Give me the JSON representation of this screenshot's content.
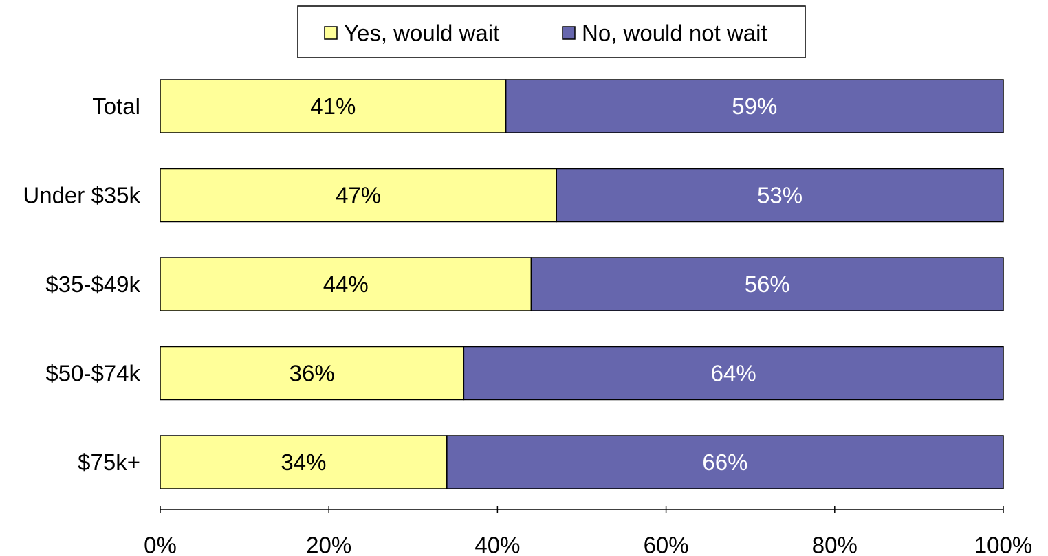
{
  "chart_data": {
    "type": "bar",
    "orientation": "horizontal",
    "stacked": true,
    "categories": [
      "Total",
      "Under $35k",
      "$35-$49k",
      "$50-$74k",
      "$75k+"
    ],
    "series": [
      {
        "name": "Yes, would wait",
        "values": [
          41,
          47,
          44,
          36,
          34
        ],
        "labels": [
          "41%",
          "47%",
          "44%",
          "36%",
          "34%"
        ],
        "color": "#FFFF99"
      },
      {
        "name": "No, would not wait",
        "values": [
          59,
          53,
          56,
          64,
          66
        ],
        "labels": [
          "59%",
          "53%",
          "56%",
          "64%",
          "66%"
        ],
        "color": "#6666AD"
      }
    ],
    "xlim": [
      0,
      100
    ],
    "xticks": [
      0,
      20,
      40,
      60,
      80,
      100
    ],
    "xtick_labels": [
      "0%",
      "20%",
      "40%",
      "60%",
      "80%",
      "100%"
    ],
    "grid": false,
    "legend_position": "top"
  }
}
